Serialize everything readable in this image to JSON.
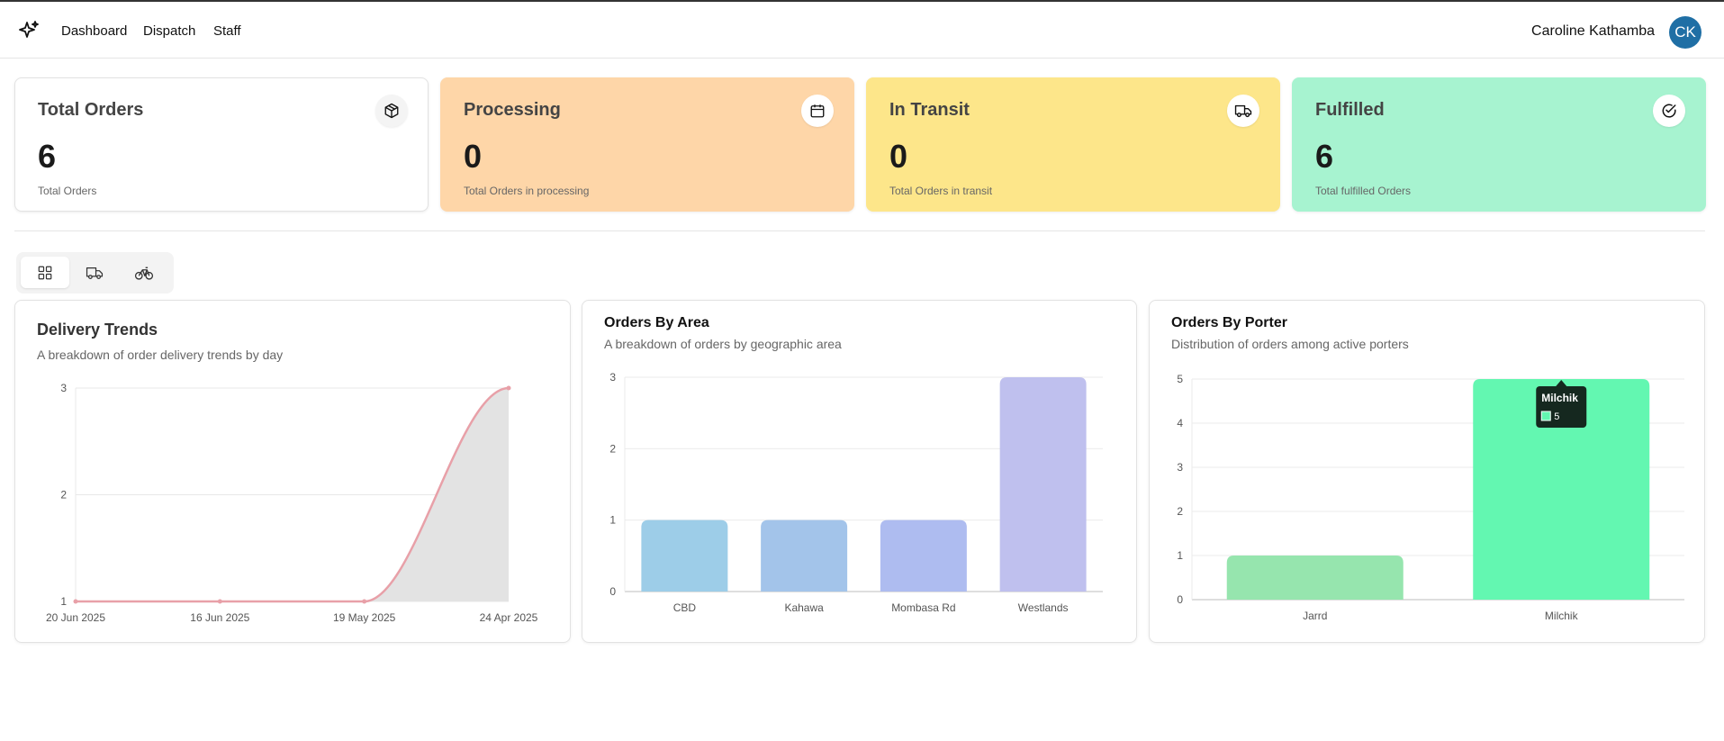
{
  "nav": {
    "links": [
      "Dashboard",
      "Dispatch",
      "Staff"
    ],
    "user_name": "Caroline Kathamba",
    "avatar_initials": "CK",
    "icons": {
      "logo": "sparkle-icon"
    }
  },
  "cards": [
    {
      "title": "Total Orders",
      "value": "6",
      "subtitle": "Total Orders",
      "icon": "package-icon",
      "color": "#ffffff"
    },
    {
      "title": "Processing",
      "value": "0",
      "subtitle": "Total Orders in processing",
      "icon": "calendar-icon",
      "color": "#fed6a8"
    },
    {
      "title": "In Transit",
      "value": "0",
      "subtitle": "Total Orders in transit",
      "icon": "truck-icon",
      "color": "#fde68a"
    },
    {
      "title": "Fulfilled",
      "value": "6",
      "subtitle": "Total fulfilled Orders",
      "icon": "check-circle-icon",
      "color": "#a7f3d0"
    }
  ],
  "tabs": [
    {
      "icon": "grid-icon",
      "active": true
    },
    {
      "icon": "truck-icon",
      "active": false
    },
    {
      "icon": "bicycle-icon",
      "active": false
    }
  ],
  "panels": {
    "trends": {
      "title": "Delivery Trends",
      "subtitle": "A breakdown of order delivery trends by day"
    },
    "area": {
      "title": "Orders By Area",
      "subtitle": "A breakdown of orders by geographic area"
    },
    "porter": {
      "title": "Orders By Porter",
      "subtitle": "Distribution of orders among active porters"
    }
  },
  "chart_data": [
    {
      "type": "area",
      "title": "Delivery Trends",
      "categories": [
        "20 Jun 2025",
        "16 Jun 2025",
        "19 May 2025",
        "24 Apr 2025"
      ],
      "values": [
        1,
        1,
        1,
        3
      ],
      "ylim": [
        1,
        3
      ],
      "yticks": [
        1,
        2,
        3
      ],
      "line_color": "#e8a0a8",
      "fill_color": "#e3e3e3"
    },
    {
      "type": "bar",
      "title": "Orders By Area",
      "categories": [
        "CBD",
        "Kahawa",
        "Mombasa Rd",
        "Westlands"
      ],
      "values": [
        1,
        1,
        1,
        3
      ],
      "ylim": [
        0,
        3
      ],
      "yticks": [
        0,
        1,
        2,
        3
      ],
      "colors": [
        "#9dcde8",
        "#a3c4ea",
        "#aebcf0",
        "#bfc0ee"
      ]
    },
    {
      "type": "bar",
      "title": "Orders By Porter",
      "categories": [
        "Jarrd",
        "Milchik"
      ],
      "values": [
        1,
        5
      ],
      "ylim": [
        0,
        5
      ],
      "yticks": [
        0,
        1,
        2,
        3,
        4,
        5
      ],
      "colors": [
        "#96e5ae",
        "#63f7b1"
      ],
      "tooltip": {
        "label": "Milchik",
        "value": "5"
      }
    }
  ]
}
